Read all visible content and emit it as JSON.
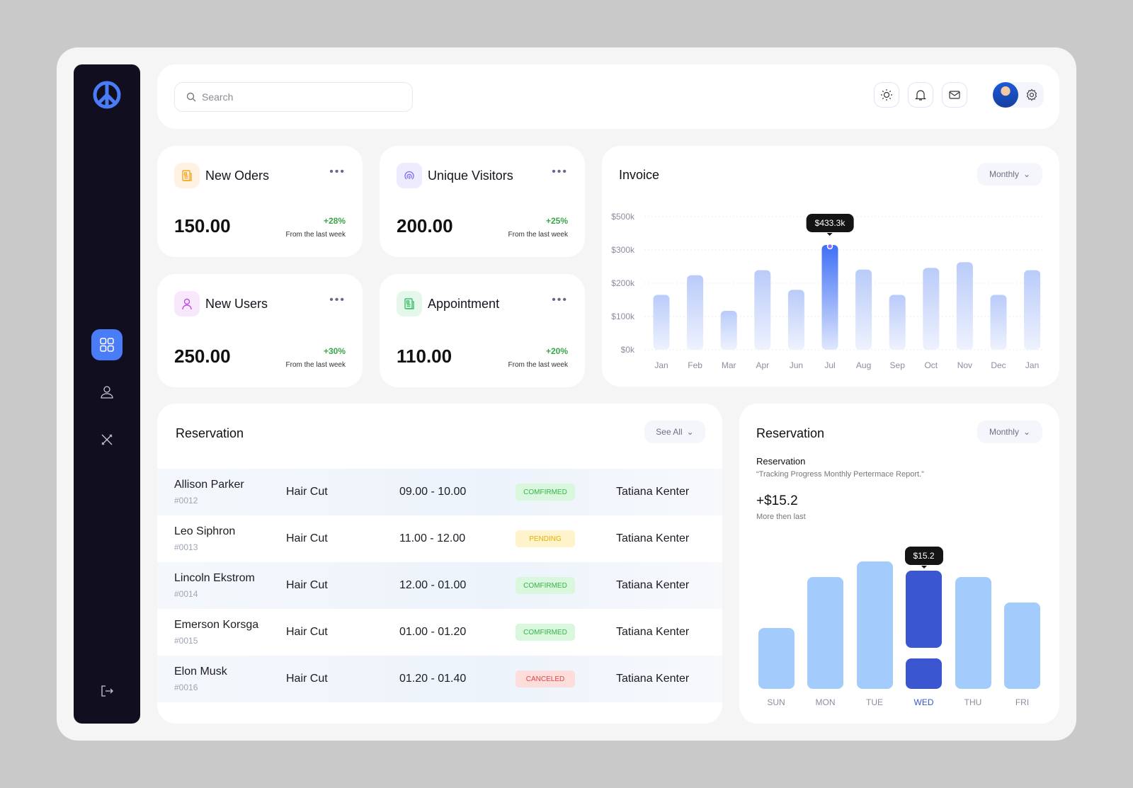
{
  "header": {
    "search_placeholder": "Search"
  },
  "kpis": [
    {
      "title": "New Oders",
      "value": "150.00",
      "change": "+28%",
      "sub": "From the last week",
      "icon": "document-icon",
      "color": "#f5a623"
    },
    {
      "title": "Unique Visitors",
      "value": "200.00",
      "change": "+25%",
      "sub": "From the last week",
      "icon": "fingerprint-icon",
      "color": "#7b6cf6"
    },
    {
      "title": "New Users",
      "value": "250.00",
      "change": "+30%",
      "sub": "From the last week",
      "icon": "user-icon",
      "color": "#c04fe0"
    },
    {
      "title": "Appointment",
      "value": "110.00",
      "change": "+20%",
      "sub": "From the last week",
      "icon": "calendar-doc-icon",
      "color": "#3bc46a"
    }
  ],
  "invoice": {
    "title": "Invoice",
    "period": "Monthly"
  },
  "reservation_table": {
    "title": "Reservation",
    "see_all": "See All",
    "rows": [
      {
        "name": "Allison Parker",
        "id": "#0012",
        "service": "Hair Cut",
        "time": "09.00 - 10.00",
        "status": "COMFIRMED",
        "staff": "Tatiana Kenter"
      },
      {
        "name": "Leo Siphron",
        "id": "#0013",
        "service": "Hair Cut",
        "time": "11.00 - 12.00",
        "status": "PENDING",
        "staff": "Tatiana Kenter"
      },
      {
        "name": "Lincoln Ekstrom",
        "id": "#0014",
        "service": "Hair Cut",
        "time": "12.00 - 01.00",
        "status": "COMFIRMED",
        "staff": "Tatiana Kenter"
      },
      {
        "name": "Emerson Korsga",
        "id": "#0015",
        "service": "Hair Cut",
        "time": "01.00 - 01.20",
        "status": "COMFIRMED",
        "staff": "Tatiana Kenter"
      },
      {
        "name": "Elon Musk",
        "id": "#0016",
        "service": "Hair Cut",
        "time": "01.20 - 01.40",
        "status": "CANCELED",
        "staff": "Tatiana Kenter"
      }
    ]
  },
  "reservation_report": {
    "title": "Reservation",
    "period": "Monthly",
    "subtitle": "Reservation",
    "quote": "“Tracking Progress Monthly Pertermace Report.”",
    "amount": "+$15.2",
    "amount_note": "More then last"
  },
  "status_colors": {
    "COMFIRMED": [
      "#d9f7dc",
      "#38b24a"
    ],
    "PENDING": [
      "#fff3cc",
      "#e2b100"
    ],
    "CANCELED": [
      "#fddcdc",
      "#e04545"
    ]
  },
  "chart_data": [
    {
      "type": "bar",
      "title": "Invoice",
      "y_tick_labels": [
        "$0k",
        "$100k",
        "$200k",
        "$300k",
        "$500k"
      ],
      "y_tick_values": [
        0,
        100,
        200,
        300,
        500
      ],
      "categories": [
        "Jan",
        "Feb",
        "Mar",
        "Apr",
        "Jun",
        "Jul",
        "Aug",
        "Sep",
        "Oct",
        "Nov",
        "Dec",
        "Jan"
      ],
      "values": [
        165,
        224,
        117,
        239,
        180,
        433.3,
        241,
        165,
        246,
        263,
        165,
        239
      ],
      "unit": "$k",
      "highlight_index": 5,
      "highlight_label": "$433.3k"
    },
    {
      "type": "bar",
      "title": "Reservation",
      "categories": [
        "SUN",
        "MON",
        "TUE",
        "WED",
        "THU",
        "FRI"
      ],
      "relative_levels": [
        48,
        88,
        100,
        93,
        88,
        68
      ],
      "highlight_index": 3,
      "highlight_label": "$15.2"
    }
  ]
}
